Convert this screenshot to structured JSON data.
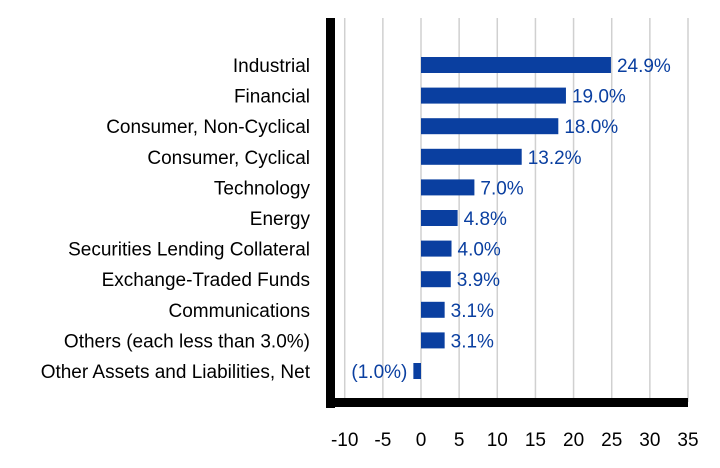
{
  "chart_data": {
    "type": "bar",
    "orientation": "horizontal",
    "categories": [
      "Industrial",
      "Financial",
      "Consumer, Non-Cyclical",
      "Consumer, Cyclical",
      "Technology",
      "Energy",
      "Securities Lending Collateral",
      "Exchange-Traded Funds",
      "Communications",
      "Others (each less than 3.0%)",
      "Other Assets and Liabilities, Net"
    ],
    "values": [
      24.9,
      19.0,
      18.0,
      13.2,
      7.0,
      4.8,
      4.0,
      3.9,
      3.1,
      3.1,
      -1.0
    ],
    "data_labels": [
      "24.9%",
      "19.0%",
      "18.0%",
      "13.2%",
      "7.0%",
      "4.8%",
      "4.0%",
      "3.9%",
      "3.1%",
      "3.1%",
      "(1.0%)"
    ],
    "x_ticks": [
      "-10",
      "-5",
      "0",
      "5",
      "10",
      "15",
      "20",
      "25",
      "30",
      "35"
    ],
    "xlim": [
      -11,
      35
    ],
    "grid": "vertical",
    "title": "",
    "xlabel": "",
    "ylabel": "",
    "colors": {
      "bar": "#0a3fa0",
      "label": "#0a3fa0",
      "grid": "#d0d0d0",
      "axis": "#000000",
      "category_text": "#000000"
    }
  }
}
